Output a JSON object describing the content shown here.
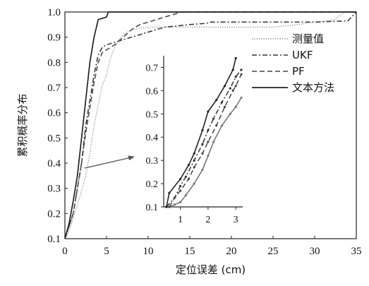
{
  "chart_data": [
    {
      "type": "line",
      "title": "",
      "xlabel": "定位误差 (cm)",
      "ylabel": "累积概率分布",
      "xlim": [
        0,
        35
      ],
      "ylim": [
        0.1,
        1.0
      ],
      "x_ticks": [
        "0",
        "5",
        "10",
        "15",
        "20",
        "25",
        "30",
        "35"
      ],
      "y_ticks": [
        "0.1",
        "0.2",
        "0.3",
        "0.4",
        "0.5",
        "0.6",
        "0.7",
        "0.8",
        "0.9",
        "1.0"
      ],
      "grid": false,
      "legend_position": "right",
      "series": [
        {
          "name": "测量值",
          "style": "dotted",
          "color": "#888888",
          "points": [
            [
              0,
              0.1
            ],
            [
              0.5,
              0.13
            ],
            [
              1,
              0.18
            ],
            [
              2,
              0.29
            ],
            [
              2.5,
              0.35
            ],
            [
              3,
              0.44
            ],
            [
              3.5,
              0.55
            ],
            [
              4,
              0.63
            ],
            [
              4.5,
              0.71
            ],
            [
              5,
              0.75
            ],
            [
              5.5,
              0.82
            ],
            [
              6,
              0.86
            ],
            [
              6.5,
              0.89
            ],
            [
              7,
              0.91
            ],
            [
              8,
              0.93
            ],
            [
              9,
              0.935
            ],
            [
              10,
              0.94
            ],
            [
              15,
              0.94
            ],
            [
              20,
              0.94
            ],
            [
              25,
              0.94
            ],
            [
              28,
              0.95
            ],
            [
              30,
              0.96
            ],
            [
              31.5,
              0.965
            ],
            [
              32.5,
              0.97
            ],
            [
              33,
              0.985
            ],
            [
              33.5,
              1.0
            ],
            [
              35,
              1.0
            ]
          ]
        },
        {
          "name": "UKF",
          "style": "dashdot",
          "color": "#333333",
          "points": [
            [
              0,
              0.1
            ],
            [
              0.5,
              0.15
            ],
            [
              1,
              0.2
            ],
            [
              1.5,
              0.3
            ],
            [
              2,
              0.4
            ],
            [
              2.5,
              0.55
            ],
            [
              3,
              0.65
            ],
            [
              3.5,
              0.75
            ],
            [
              4,
              0.83
            ],
            [
              4.5,
              0.86
            ],
            [
              5,
              0.87
            ],
            [
              6,
              0.88
            ],
            [
              7,
              0.89
            ],
            [
              8,
              0.9
            ],
            [
              9,
              0.91
            ],
            [
              10,
              0.92
            ],
            [
              12,
              0.94
            ],
            [
              15,
              0.95
            ],
            [
              17,
              0.955
            ],
            [
              17.5,
              0.96
            ],
            [
              20,
              0.96
            ],
            [
              25,
              0.96
            ],
            [
              30,
              0.96
            ],
            [
              34,
              0.965
            ],
            [
              35,
              1.0
            ]
          ]
        },
        {
          "name": "PF",
          "style": "dashed",
          "color": "#444444",
          "points": [
            [
              0,
              0.1
            ],
            [
              0.5,
              0.15
            ],
            [
              1,
              0.2
            ],
            [
              1.5,
              0.3
            ],
            [
              2,
              0.4
            ],
            [
              2.5,
              0.52
            ],
            [
              3,
              0.62
            ],
            [
              3.5,
              0.72
            ],
            [
              4,
              0.8
            ],
            [
              4.5,
              0.84
            ],
            [
              5,
              0.85
            ],
            [
              6,
              0.87
            ],
            [
              7,
              0.9
            ],
            [
              8,
              0.93
            ],
            [
              9,
              0.95
            ],
            [
              10,
              0.96
            ],
            [
              11,
              0.97
            ],
            [
              12,
              0.98
            ],
            [
              13,
              0.99
            ],
            [
              14,
              1.0
            ],
            [
              35,
              1.0
            ]
          ]
        },
        {
          "name": "文本方法",
          "style": "solid",
          "color": "#222222",
          "points": [
            [
              0,
              0.1
            ],
            [
              0.5,
              0.16
            ],
            [
              1,
              0.25
            ],
            [
              1.5,
              0.35
            ],
            [
              2,
              0.5
            ],
            [
              2.5,
              0.65
            ],
            [
              3,
              0.8
            ],
            [
              3.5,
              0.9
            ],
            [
              4,
              0.97
            ],
            [
              4.5,
              0.975
            ],
            [
              5,
              0.98
            ],
            [
              5.2,
              1.0
            ],
            [
              35,
              1.0
            ]
          ]
        }
      ]
    },
    {
      "type": "line",
      "title": "",
      "xlim": [
        0.4,
        3.25
      ],
      "ylim": [
        0.1,
        0.75
      ],
      "x_ticks": [
        "1",
        "2",
        "3"
      ],
      "y_ticks": [
        "0.1",
        "0.2",
        "0.3",
        "0.4",
        "0.5",
        "0.6",
        "0.7"
      ],
      "grid": false,
      "series": [
        {
          "name": "测量值",
          "style": "solid",
          "color": "#777777",
          "points": [
            [
              0.6,
              0.1
            ],
            [
              0.8,
              0.11
            ],
            [
              1.0,
              0.12
            ],
            [
              1.2,
              0.15
            ],
            [
              1.5,
              0.2
            ],
            [
              1.8,
              0.26
            ],
            [
              2.0,
              0.32
            ],
            [
              2.2,
              0.38
            ],
            [
              2.5,
              0.45
            ],
            [
              2.8,
              0.5
            ],
            [
              3.0,
              0.53
            ],
            [
              3.2,
              0.57
            ]
          ]
        },
        {
          "name": "UKF",
          "style": "dashdot",
          "color": "#333333",
          "points": [
            [
              0.5,
              0.1
            ],
            [
              0.8,
              0.14
            ],
            [
              1.0,
              0.19
            ],
            [
              1.2,
              0.23
            ],
            [
              1.5,
              0.3
            ],
            [
              1.8,
              0.37
            ],
            [
              2.0,
              0.43
            ],
            [
              2.2,
              0.48
            ],
            [
              2.5,
              0.55
            ],
            [
              2.8,
              0.61
            ],
            [
              3.0,
              0.66
            ],
            [
              3.2,
              0.69
            ]
          ]
        },
        {
          "name": "PF",
          "style": "dashed",
          "color": "#444444",
          "points": [
            [
              0.6,
              0.1
            ],
            [
              0.8,
              0.14
            ],
            [
              1.0,
              0.17
            ],
            [
              1.3,
              0.22
            ],
            [
              1.5,
              0.27
            ],
            [
              1.8,
              0.33
            ],
            [
              2.0,
              0.38
            ],
            [
              2.3,
              0.45
            ],
            [
              2.6,
              0.53
            ],
            [
              2.9,
              0.6
            ],
            [
              3.0,
              0.62
            ],
            [
              3.2,
              0.67
            ]
          ]
        },
        {
          "name": "文本方法",
          "style": "solid",
          "color": "#222222",
          "points": [
            [
              0.5,
              0.1
            ],
            [
              0.6,
              0.16
            ],
            [
              1.0,
              0.22
            ],
            [
              1.3,
              0.28
            ],
            [
              1.5,
              0.33
            ],
            [
              1.8,
              0.43
            ],
            [
              2.0,
              0.51
            ],
            [
              2.3,
              0.56
            ],
            [
              2.6,
              0.62
            ],
            [
              2.9,
              0.69
            ],
            [
              3.0,
              0.74
            ]
          ]
        }
      ]
    }
  ]
}
